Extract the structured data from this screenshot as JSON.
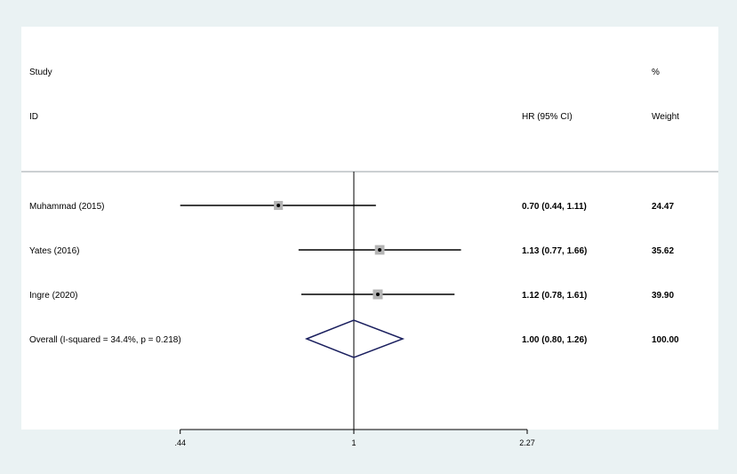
{
  "chart_data": {
    "type": "forest",
    "header": {
      "study_line1": "Study",
      "study_line2": "ID",
      "effect_label": "HR (95% CI)",
      "weight_line1": "%",
      "weight_line2": "Weight"
    },
    "rows": [
      {
        "study": "Muhammad (2015)",
        "hr": 0.7,
        "lo": 0.44,
        "hi": 1.11,
        "ci_text": "0.70 (0.44, 1.11)",
        "weight": 24.47,
        "weight_text": "24.47"
      },
      {
        "study": "Yates (2016)",
        "hr": 1.13,
        "lo": 0.77,
        "hi": 1.66,
        "ci_text": "1.13 (0.77, 1.66)",
        "weight": 35.62,
        "weight_text": "35.62"
      },
      {
        "study": "Ingre (2020)",
        "hr": 1.12,
        "lo": 0.78,
        "hi": 1.61,
        "ci_text": "1.12 (0.78, 1.61)",
        "weight": 39.9,
        "weight_text": "39.90"
      }
    ],
    "overall": {
      "label": "Overall  (I-squared = 34.4%, p = 0.218)",
      "hr": 1.0,
      "lo": 0.8,
      "hi": 1.26,
      "ci_text": "1.00 (0.80, 1.26)",
      "weight_text": "100.00"
    },
    "x_scale": "log",
    "x_ticks": [
      {
        "value": 0.44,
        "label": ".44"
      },
      {
        "value": 1,
        "label": "1"
      },
      {
        "value": 2.27,
        "label": "2.27"
      }
    ],
    "null_line": 1,
    "colors": {
      "background": "#eaf2f3",
      "panel": "#ffffff",
      "ci_line": "#000000",
      "box": "#b4b4b4",
      "diamond": "#1a1f5e",
      "axis": "#000000",
      "separator": "#9aa0a6"
    }
  }
}
